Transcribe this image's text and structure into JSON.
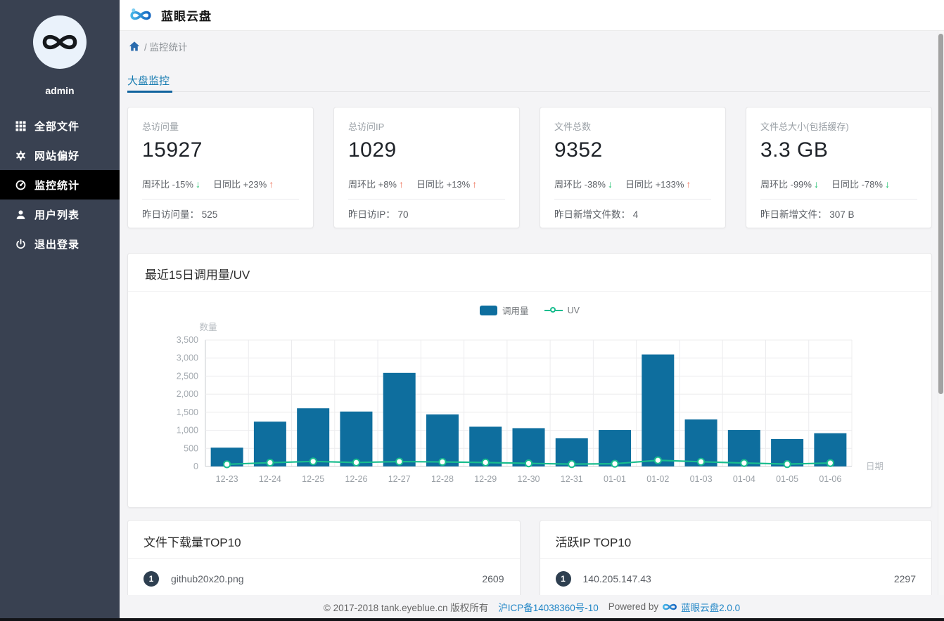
{
  "app": {
    "title": "蓝眼云盘"
  },
  "sidebar": {
    "username": "admin",
    "items": [
      {
        "label": "全部文件",
        "icon": "grid-icon",
        "active": false
      },
      {
        "label": "网站偏好",
        "icon": "gear-icon",
        "active": false
      },
      {
        "label": "监控统计",
        "icon": "dashboard-icon",
        "active": true
      },
      {
        "label": "用户列表",
        "icon": "user-icon",
        "active": false
      },
      {
        "label": "退出登录",
        "icon": "power-icon",
        "active": false
      }
    ]
  },
  "breadcrumb": {
    "path_label": "/ 监控统计"
  },
  "tabs": {
    "active_label": "大盘监控"
  },
  "stat_cards": [
    {
      "label": "总访问量",
      "value": "15927",
      "wow_text": "周环比 -15%",
      "wow_arrow": "↓",
      "wow_dir": "down",
      "dod_text": "日同比 +23%",
      "dod_arrow": "↑",
      "dod_dir": "up",
      "foot_label": "昨日访问量：",
      "foot_value": "525"
    },
    {
      "label": "总访问IP",
      "value": "1029",
      "wow_text": "周环比 +8%",
      "wow_arrow": "↑",
      "wow_dir": "up",
      "dod_text": "日同比 +13%",
      "dod_arrow": "↑",
      "dod_dir": "up",
      "foot_label": "昨日访IP：",
      "foot_value": "70"
    },
    {
      "label": "文件总数",
      "value": "9352",
      "wow_text": "周环比 -38%",
      "wow_arrow": "↓",
      "wow_dir": "down",
      "dod_text": "日同比 +133%",
      "dod_arrow": "↑",
      "dod_dir": "up",
      "foot_label": "昨日新增文件数：",
      "foot_value": "4"
    },
    {
      "label": "文件总大小(包括缓存)",
      "value": "3.3 GB",
      "wow_text": "周环比 -99%",
      "wow_arrow": "↓",
      "wow_dir": "down",
      "dod_text": "日同比 -78%",
      "dod_arrow": "↓",
      "dod_dir": "down",
      "foot_label": "昨日新增文件：",
      "foot_value": "307 B"
    }
  ],
  "chart_data": {
    "type": "bar",
    "title": "最近15日调用量/UV",
    "categories": [
      "12-23",
      "12-24",
      "12-25",
      "12-26",
      "12-27",
      "12-28",
      "12-29",
      "12-30",
      "12-31",
      "01-01",
      "01-02",
      "01-03",
      "01-04",
      "01-05",
      "01-06"
    ],
    "series": [
      {
        "name": "调用量",
        "type": "bar",
        "color": "#0e6e9e",
        "values": [
          520,
          1240,
          1610,
          1520,
          2590,
          1440,
          1100,
          1060,
          780,
          1010,
          3100,
          1300,
          1010,
          760,
          920
        ]
      },
      {
        "name": "UV",
        "type": "line",
        "color": "#19bd8e",
        "values": [
          60,
          105,
          140,
          110,
          135,
          125,
          110,
          85,
          65,
          75,
          170,
          130,
          95,
          65,
          95
        ]
      }
    ],
    "xlabel": "日期",
    "ylabel": "数量",
    "ylim": [
      0,
      3500
    ],
    "ytick_step": 500,
    "grid": true,
    "legend_position": "top-center"
  },
  "top_lists": [
    {
      "title": "文件下载量TOP10",
      "rows": [
        {
          "rank": "1",
          "name": "github20x20.png",
          "value": "2609"
        }
      ]
    },
    {
      "title": "活跃IP TOP10",
      "rows": [
        {
          "rank": "1",
          "name": "140.205.147.43",
          "value": "2297"
        }
      ]
    }
  ],
  "footer": {
    "copyright": "© 2017-2018 tank.eyeblue.cn 版权所有",
    "icp_link": "沪ICP备14038360号-10",
    "powered_by": "Powered by",
    "product_link": "蓝眼云盘2.0.0"
  },
  "colors": {
    "sidebar_bg": "#394151",
    "sidebar_active_bg": "#000000",
    "accent_blue": "#157ab0",
    "bar_blue": "#0e6e9e",
    "line_green": "#19bd8e",
    "trend_up_orange": "#ee7158",
    "trend_down_green": "#19be6b",
    "link_blue": "#2186c6"
  }
}
